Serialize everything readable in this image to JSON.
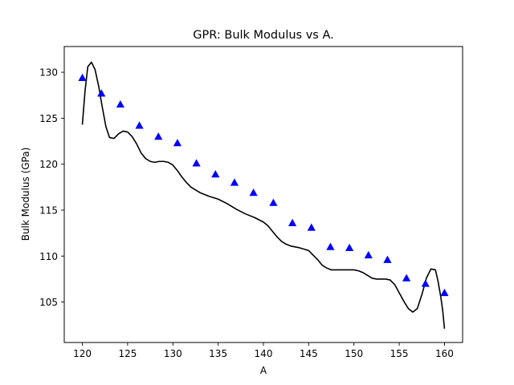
{
  "chart_data": {
    "type": "scatter",
    "title": "GPR: Bulk Modulus vs A.",
    "xlabel": "A",
    "ylabel": "Bulk Modulus (GPa)",
    "xlim": [
      118.0,
      162.0
    ],
    "ylim": [
      100.6,
      132.8
    ],
    "xticks": [
      120,
      125,
      130,
      135,
      140,
      145,
      150,
      155,
      160
    ],
    "yticks": [
      105,
      110,
      115,
      120,
      125,
      130
    ],
    "grid": false,
    "points": {
      "marker": "triangle",
      "color": "#0000ff",
      "x": [
        120.0,
        122.1,
        124.2,
        126.3,
        128.4,
        130.5,
        132.6,
        134.7,
        136.8,
        138.9,
        141.1,
        143.2,
        145.3,
        147.4,
        149.5,
        151.6,
        153.7,
        155.8,
        157.9,
        160.0
      ],
      "y": [
        129.4,
        127.7,
        126.5,
        124.2,
        123.0,
        122.3,
        120.1,
        118.9,
        118.0,
        116.9,
        115.8,
        113.6,
        113.1,
        111.0,
        110.9,
        110.1,
        109.6,
        107.6,
        107.0,
        106.0
      ]
    },
    "curve": {
      "color": "#000000",
      "x": [
        120.0,
        120.3,
        120.6,
        121.0,
        121.4,
        121.8,
        122.2,
        122.6,
        123.0,
        123.5,
        124.0,
        124.5,
        125.0,
        125.5,
        126.0,
        126.5,
        127.0,
        127.5,
        128.0,
        128.5,
        129.0,
        129.5,
        130.0,
        130.5,
        131.0,
        131.5,
        132.0,
        132.5,
        133.0,
        133.5,
        134.0,
        135.0,
        136.0,
        137.0,
        138.0,
        139.0,
        140.0,
        140.5,
        141.0,
        141.5,
        142.0,
        142.5,
        143.0,
        144.0,
        145.0,
        145.5,
        146.0,
        146.5,
        147.0,
        147.5,
        148.0,
        148.5,
        149.0,
        149.5,
        150.0,
        150.5,
        151.0,
        151.5,
        152.0,
        152.5,
        153.0,
        153.5,
        154.0,
        154.5,
        155.0,
        155.5,
        156.0,
        156.5,
        157.0,
        157.5,
        158.0,
        158.5,
        159.0,
        159.3,
        159.6,
        159.8,
        160.0
      ],
      "y": [
        124.3,
        128.0,
        130.6,
        131.1,
        130.3,
        128.5,
        126.2,
        124.1,
        122.9,
        122.8,
        123.3,
        123.6,
        123.5,
        123.0,
        122.2,
        121.2,
        120.6,
        120.3,
        120.2,
        120.3,
        120.3,
        120.2,
        119.9,
        119.3,
        118.6,
        118.0,
        117.5,
        117.2,
        116.9,
        116.7,
        116.5,
        116.2,
        115.7,
        115.1,
        114.6,
        114.2,
        113.7,
        113.3,
        112.7,
        112.1,
        111.6,
        111.3,
        111.1,
        110.9,
        110.6,
        110.1,
        109.6,
        109.0,
        108.7,
        108.5,
        108.5,
        108.5,
        108.5,
        108.5,
        108.5,
        108.4,
        108.2,
        107.9,
        107.6,
        107.5,
        107.5,
        107.5,
        107.4,
        106.9,
        106.0,
        105.1,
        104.3,
        103.9,
        104.3,
        105.8,
        107.6,
        108.6,
        108.5,
        107.2,
        105.5,
        104.1,
        102.1
      ]
    }
  }
}
